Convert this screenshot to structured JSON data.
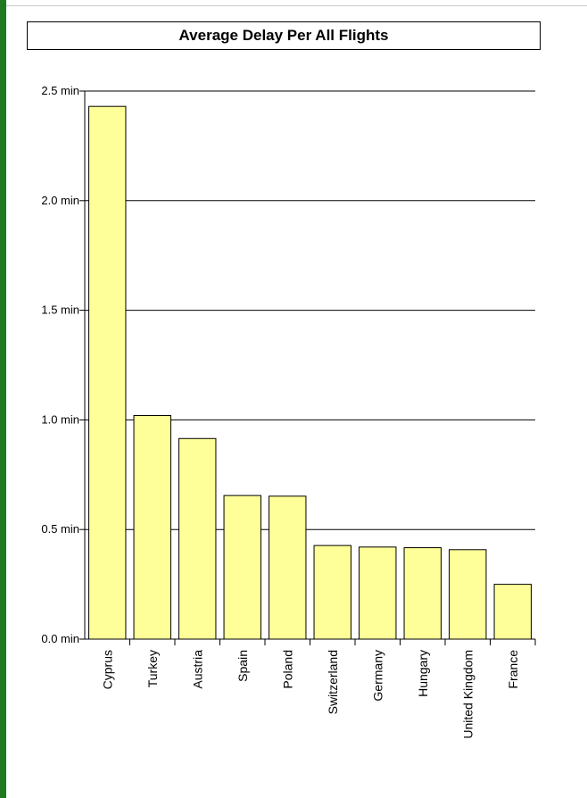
{
  "chart_data": {
    "type": "bar",
    "title": "Average Delay Per All Flights",
    "categories": [
      "Cyprus",
      "Turkey",
      "Austria",
      "Spain",
      "Poland",
      "Switzerland",
      "Germany",
      "Hungary",
      "United Kingdom",
      "France"
    ],
    "values": [
      2.43,
      1.02,
      0.915,
      0.655,
      0.652,
      0.427,
      0.42,
      0.417,
      0.408,
      0.25
    ],
    "ylim": [
      0,
      2.5
    ],
    "yticks": [
      {
        "value": 0.0,
        "label": "0.0 min"
      },
      {
        "value": 0.5,
        "label": "0.5 min"
      },
      {
        "value": 1.0,
        "label": "1.0 min"
      },
      {
        "value": 1.5,
        "label": "1.5 min"
      },
      {
        "value": 2.0,
        "label": "2.0 min"
      },
      {
        "value": 2.5,
        "label": "2.5 min"
      }
    ],
    "grid": true,
    "colors": {
      "bar_fill": "#ffff99",
      "bar_stroke": "#000000",
      "grid": "#000000",
      "accent_left": "#1f7a1f"
    }
  }
}
